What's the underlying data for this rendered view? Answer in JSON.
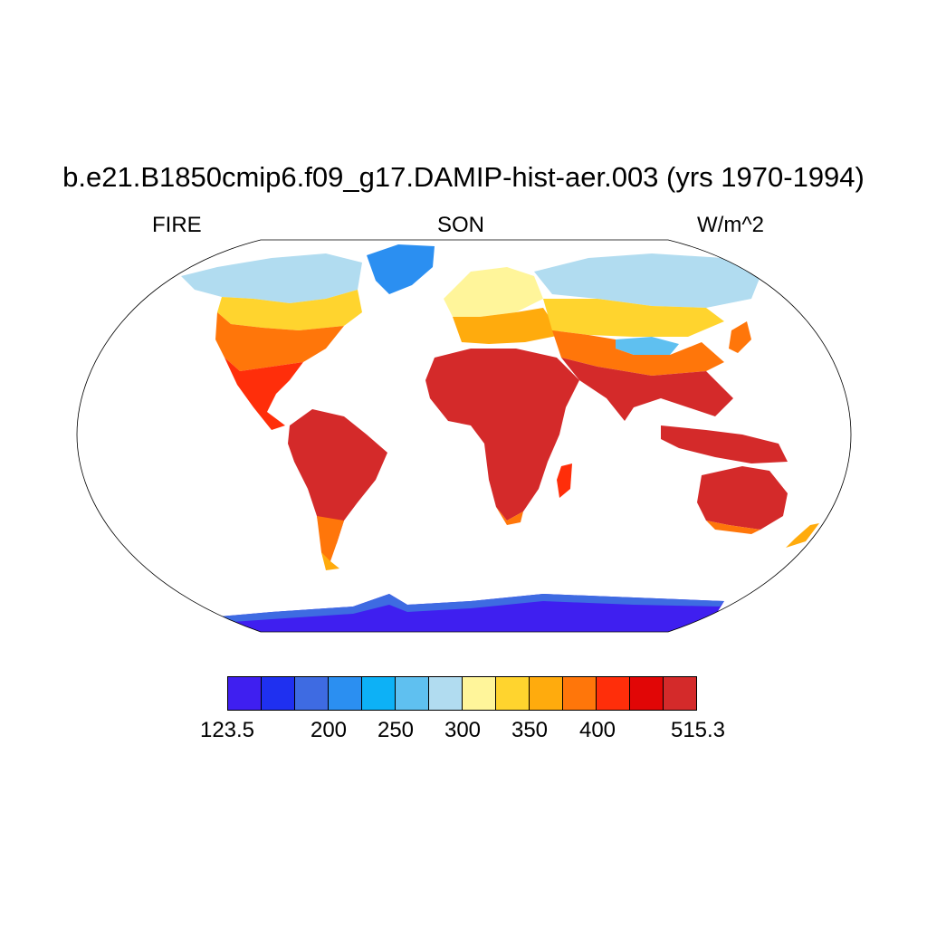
{
  "title": "b.e21.B1850cmip6.f09_g17.DAMIP-hist-aer.003 (yrs 1970-1994)",
  "left_label": "FIRE",
  "center_label": "SON",
  "right_label": "W/m^2",
  "colorbar": {
    "colors": [
      "#3f1ff0",
      "#1f30f0",
      "#3e6be2",
      "#2b8ff1",
      "#0db1f6",
      "#5fc0f0",
      "#b1dcf0",
      "#fff59a",
      "#ffd42e",
      "#ffab0d",
      "#ff760a",
      "#ff2e0a",
      "#e10606",
      "#d42a2a"
    ],
    "tick_labels": [
      "123.5",
      "200",
      "250",
      "300",
      "350",
      "400",
      "515.3"
    ]
  },
  "palette": {
    "antarctica": "#3f1ff0",
    "antarctica_edge": "#3e6be2",
    "greenland": "#2b8ff1",
    "arctic": "#b1dcf0",
    "arctic_blue": "#5fc0f0",
    "temperate": "#fff59a",
    "warm": "#ffd42e",
    "warmer": "#ffab0d",
    "hot": "#ff760a",
    "very_hot": "#ff2e0a",
    "tropics": "#d42a2a"
  }
}
